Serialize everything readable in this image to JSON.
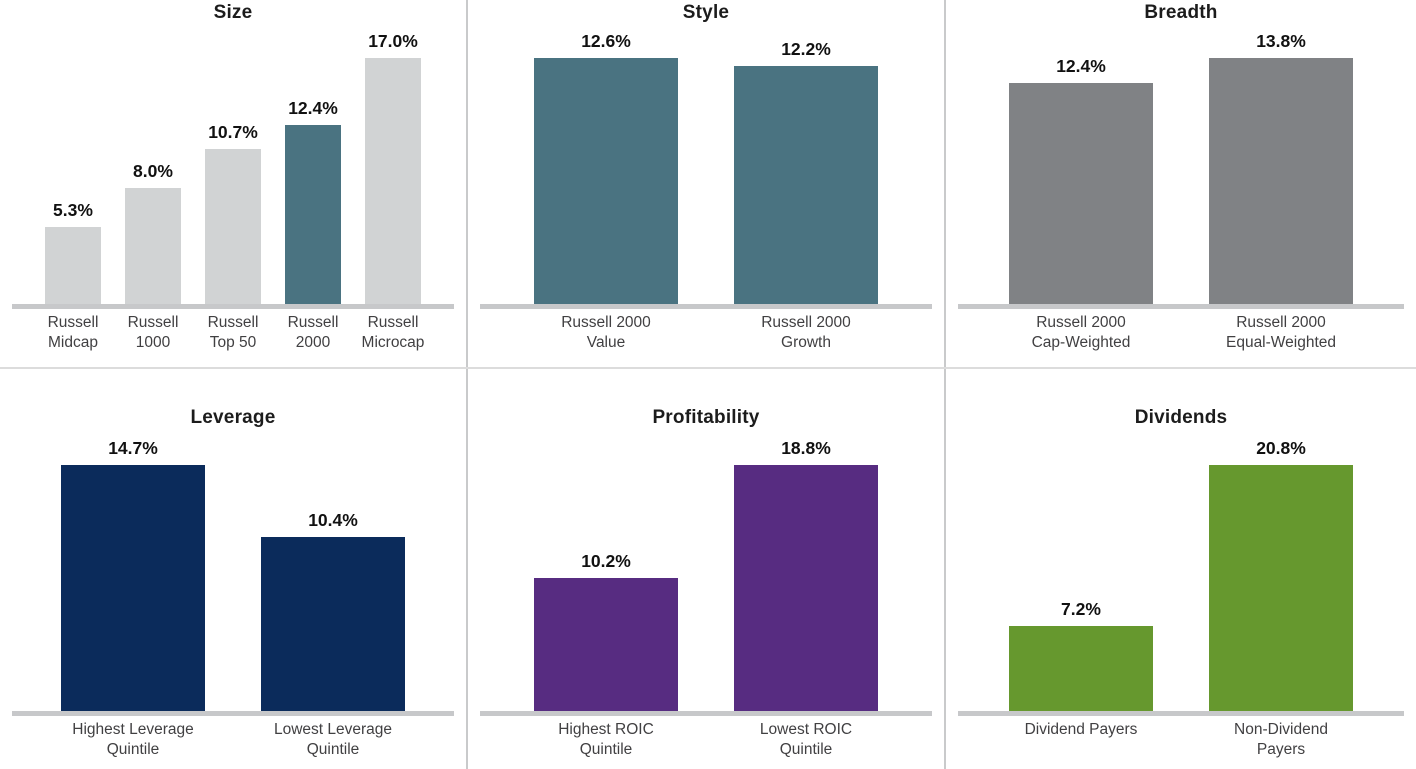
{
  "palette": {
    "light_gray_bar": "#d1d3d4",
    "teal_bar": "#4a7381",
    "mid_gray_bar": "#808285",
    "navy_bar": "#0b2b5b",
    "purple_bar": "#572c81",
    "green_bar": "#66982e",
    "axis_line": "#c7c8ca",
    "panel_divider": "#c9cacb",
    "title_text": "#1c1c1c",
    "value_label_text": "#111111",
    "category_label_text": "#414042",
    "background": "#ffffff"
  },
  "chart_data": [
    {
      "type": "bar",
      "title": "Size",
      "categories": [
        [
          "Russell",
          "Midcap"
        ],
        [
          "Russell",
          "1000"
        ],
        [
          "Russell",
          "Top 50"
        ],
        [
          "Russell",
          "2000"
        ],
        [
          "Russell",
          "Microcap"
        ]
      ],
      "values": [
        5.3,
        8.0,
        10.7,
        12.4,
        17.0
      ],
      "data_labels": [
        "5.3%",
        "8.0%",
        "10.7%",
        "12.4%",
        "17.0%"
      ],
      "bar_colors": [
        "#d1d3d4",
        "#d1d3d4",
        "#d1d3d4",
        "#4a7381",
        "#d1d3d4"
      ],
      "ylim": [
        0,
        17.0
      ],
      "unit": "%",
      "grid": false,
      "legend": false
    },
    {
      "type": "bar",
      "title": "Style",
      "categories": [
        [
          "Russell 2000",
          "Value"
        ],
        [
          "Russell 2000",
          "Growth"
        ]
      ],
      "values": [
        12.6,
        12.2
      ],
      "data_labels": [
        "12.6%",
        "12.2%"
      ],
      "bar_colors": [
        "#4a7381",
        "#4a7381"
      ],
      "ylim": [
        0,
        12.6
      ],
      "unit": "%",
      "grid": false,
      "legend": false
    },
    {
      "type": "bar",
      "title": "Breadth",
      "categories": [
        [
          "Russell 2000",
          "Cap-Weighted"
        ],
        [
          "Russell 2000",
          "Equal-Weighted"
        ]
      ],
      "values": [
        12.4,
        13.8
      ],
      "data_labels": [
        "12.4%",
        "13.8%"
      ],
      "bar_colors": [
        "#808285",
        "#808285"
      ],
      "ylim": [
        0,
        13.8
      ],
      "unit": "%",
      "grid": false,
      "legend": false
    },
    {
      "type": "bar",
      "title": "Leverage",
      "categories": [
        [
          "Highest Leverage",
          "Quintile"
        ],
        [
          "Lowest Leverage",
          "Quintile"
        ]
      ],
      "values": [
        14.7,
        10.4
      ],
      "data_labels": [
        "14.7%",
        "10.4%"
      ],
      "bar_colors": [
        "#0b2b5b",
        "#0b2b5b"
      ],
      "ylim": [
        0,
        14.7
      ],
      "unit": "%",
      "grid": false,
      "legend": false
    },
    {
      "type": "bar",
      "title": "Profitability",
      "categories": [
        [
          "Highest ROIC",
          "Quintile"
        ],
        [
          "Lowest ROIC",
          "Quintile"
        ]
      ],
      "values": [
        10.2,
        18.8
      ],
      "data_labels": [
        "10.2%",
        "18.8%"
      ],
      "bar_colors": [
        "#572c81",
        "#572c81"
      ],
      "ylim": [
        0,
        18.8
      ],
      "unit": "%",
      "grid": false,
      "legend": false
    },
    {
      "type": "bar",
      "title": "Dividends",
      "categories": [
        [
          "Dividend Payers"
        ],
        [
          "Non-Dividend",
          "Payers"
        ]
      ],
      "values": [
        7.2,
        20.8
      ],
      "data_labels": [
        "7.2%",
        "20.8%"
      ],
      "bar_colors": [
        "#66982e",
        "#66982e"
      ],
      "ylim": [
        0,
        20.8
      ],
      "unit": "%",
      "grid": false,
      "legend": false
    }
  ]
}
